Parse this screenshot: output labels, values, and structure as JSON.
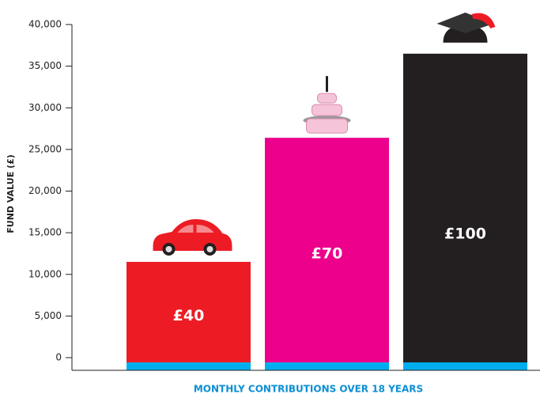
{
  "chart_data": {
    "type": "bar",
    "y_label": "FUND VALUE (£)",
    "x_label": "MONTHLY CONTRIBUTIONS OVER 18 YEARS",
    "categories": [
      "£40",
      "£70",
      "£100"
    ],
    "values": [
      11500,
      26400,
      36500
    ],
    "colors": [
      "#ed1c24",
      "#ec008c",
      "#231f20"
    ],
    "ylim": [
      0,
      40000
    ],
    "yticks": [
      0,
      {
        "value": 5000,
        "label": "5,000"
      },
      {
        "value": 10000,
        "label": "10,000"
      },
      {
        "value": 15000,
        "label": "15,000"
      },
      {
        "value": 20000,
        "label": "20,000"
      },
      {
        "value": 25000,
        "label": "25,000"
      },
      {
        "value": 30000,
        "label": "30,000"
      },
      {
        "value": 35000,
        "label": "35,000"
      },
      {
        "value": 40000,
        "label": "40,000"
      }
    ]
  }
}
